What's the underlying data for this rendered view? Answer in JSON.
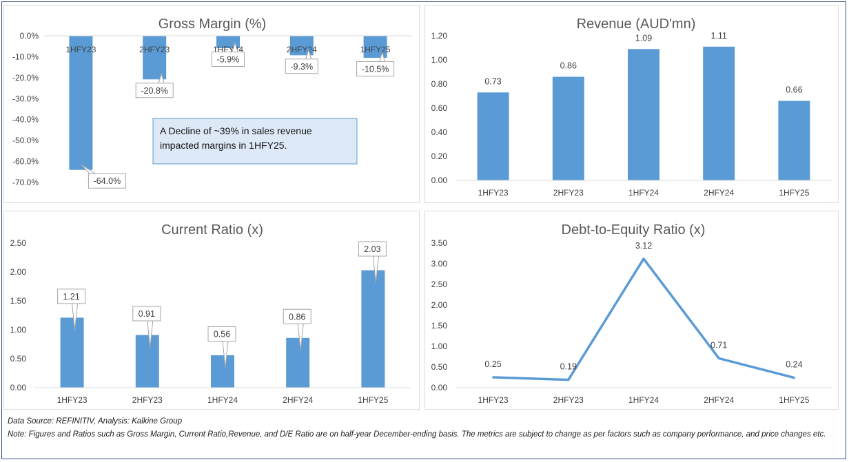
{
  "footer": {
    "source": "Data Source: REFINITIV, Analysis: Kalkine Group",
    "note": "Note: Figures and Ratios such as Gross Margin, Current Ratio,Revenue, and D/E Ratio are on half-year December-ending basis. The metrics are subject to change as per factors such as company performance, and price changes etc."
  },
  "colors": {
    "bar": "#5b9bd5",
    "line": "#5b9bd5",
    "grid": "#d9d9d9",
    "callout_fill": "#dde9f7",
    "callout_border": "#5b9bd5"
  },
  "chart_data": [
    {
      "id": "gross-margin",
      "type": "bar",
      "title": "Gross Margin (%)",
      "categories": [
        "1HFY23",
        "2HFY23",
        "1HFY24",
        "2HFY24",
        "1HFY25"
      ],
      "values": [
        -64.0,
        -20.8,
        -5.9,
        -9.3,
        -10.5
      ],
      "data_labels": [
        "-64.0%",
        "-20.8%",
        "-5.9%",
        "-9.3%",
        "-10.5%"
      ],
      "ylim": [
        -70,
        0
      ],
      "yticks": [
        0,
        -10,
        -20,
        -30,
        -40,
        -50,
        -60,
        -70
      ],
      "ytick_labels": [
        "0.0%",
        "-10.0%",
        "-20.0%",
        "-30.0%",
        "-40.0%",
        "-50.0%",
        "-60.0%",
        "-70.0%"
      ],
      "grid": false,
      "category_labels_at": "top",
      "annotation": "A Decline of ~39% in sales revenue impacted margins in 1HFY25."
    },
    {
      "id": "revenue",
      "type": "bar",
      "title": "Revenue (AUD'mn)",
      "categories": [
        "1HFY23",
        "2HFY23",
        "1HFY24",
        "2HFY24",
        "1HFY25"
      ],
      "values": [
        0.73,
        0.86,
        1.09,
        1.11,
        0.66
      ],
      "data_labels": [
        "0.73",
        "0.86",
        "1.09",
        "1.11",
        "0.66"
      ],
      "ylim": [
        0,
        1.2
      ],
      "yticks": [
        0,
        0.2,
        0.4,
        0.6,
        0.8,
        1.0,
        1.2
      ],
      "ytick_labels": [
        "0.00",
        "0.20",
        "0.40",
        "0.60",
        "0.80",
        "1.00",
        "1.20"
      ],
      "grid": false
    },
    {
      "id": "current-ratio",
      "type": "bar",
      "title": "Current Ratio (x)",
      "categories": [
        "1HFY23",
        "2HFY23",
        "1HFY24",
        "2HFY24",
        "1HFY25"
      ],
      "values": [
        1.21,
        0.91,
        0.56,
        0.86,
        2.03
      ],
      "data_labels": [
        "1.21",
        "0.91",
        "0.56",
        "0.86",
        "2.03"
      ],
      "ylim": [
        0,
        2.5
      ],
      "yticks": [
        0,
        0.5,
        1.0,
        1.5,
        2.0,
        2.5
      ],
      "ytick_labels": [
        "0.00",
        "0.50",
        "1.00",
        "1.50",
        "2.00",
        "2.50"
      ],
      "grid": false
    },
    {
      "id": "debt-to-equity",
      "type": "line",
      "title": "Debt-to-Equity Ratio (x)",
      "categories": [
        "1HFY23",
        "2HFY23",
        "1HFY24",
        "2HFY24",
        "1HFY25"
      ],
      "values": [
        0.25,
        0.19,
        3.12,
        0.71,
        0.24
      ],
      "data_labels": [
        "0.25",
        "0.19",
        "3.12",
        "0.71",
        "0.24"
      ],
      "ylim": [
        0,
        3.5
      ],
      "yticks": [
        0,
        0.5,
        1.0,
        1.5,
        2.0,
        2.5,
        3.0,
        3.5
      ],
      "ytick_labels": [
        "0.00",
        "0.50",
        "1.00",
        "1.50",
        "2.00",
        "2.50",
        "3.00",
        "3.50"
      ],
      "grid": false
    }
  ]
}
